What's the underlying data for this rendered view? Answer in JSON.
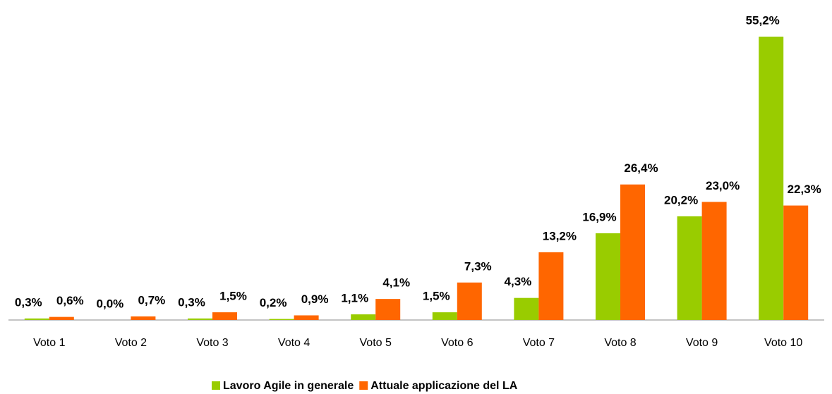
{
  "chart_data": {
    "type": "bar",
    "categories": [
      "Voto 1",
      "Voto 2",
      "Voto 3",
      "Voto 4",
      "Voto 5",
      "Voto 6",
      "Voto 7",
      "Voto 8",
      "Voto 9",
      "Voto 10"
    ],
    "series": [
      {
        "name": "Lavoro Agile in generale",
        "color": "#99cc00",
        "values": [
          0.3,
          0.0,
          0.3,
          0.2,
          1.1,
          1.5,
          4.3,
          16.9,
          20.2,
          55.2
        ],
        "value_labels": [
          "0,3%",
          "0,0%",
          "0,3%",
          "0,2%",
          "1,1%",
          "1,5%",
          "4,3%",
          "16,9%",
          "20,2%",
          "55,2%"
        ]
      },
      {
        "name": "Attuale applicazione del LA",
        "color": "#ff6600",
        "values": [
          0.6,
          0.7,
          1.5,
          0.9,
          4.1,
          7.3,
          13.2,
          26.4,
          23.0,
          22.3
        ],
        "value_labels": [
          "0,6%",
          "0,7%",
          "1,5%",
          "0,9%",
          "4,1%",
          "7,3%",
          "13,2%",
          "26,4%",
          "23,0%",
          "22,3%"
        ]
      }
    ],
    "ylim": [
      0,
      60
    ],
    "legend": "bottom"
  }
}
